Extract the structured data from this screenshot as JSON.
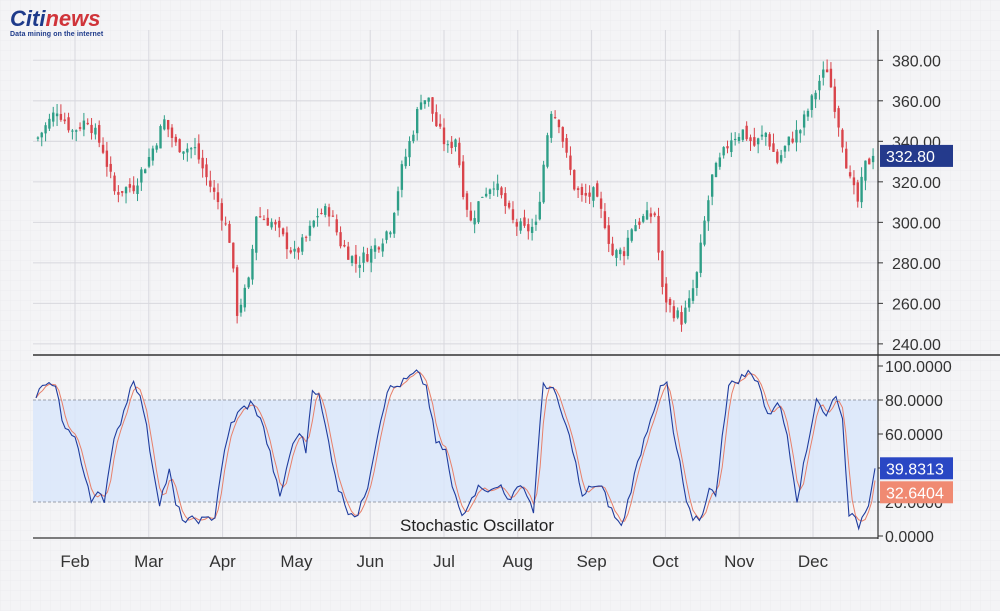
{
  "brand": {
    "logo_first": "Citi",
    "logo_second": "news",
    "tagline": "Data mining on the internet"
  },
  "colors": {
    "background": "#f4f4f6",
    "grid": "#d8d8de",
    "up": "#2e9e87",
    "down": "#d9434a",
    "k_line": "#1f3c9e",
    "d_line": "#e8806a",
    "band_fill": "#d9e6fa",
    "price_label_bg": "#243a8c",
    "k_label_bg": "#2a47c4",
    "d_label_bg": "#f08a72",
    "axis_text": "#333333"
  },
  "chart_data": [
    {
      "type": "candlestick",
      "title": "",
      "y_ticks": [
        "380.00",
        "360.00",
        "340.00",
        "320.00",
        "300.00",
        "280.00",
        "260.00",
        "240.00"
      ],
      "ylim": [
        235,
        392
      ],
      "current_price_label": "332.80",
      "current_price": 332.8,
      "x_months": [
        "Feb",
        "Mar",
        "Apr",
        "May",
        "Jun",
        "Jul",
        "Aug",
        "Sep",
        "Oct",
        "Nov",
        "Dec"
      ],
      "close_anchors": [
        [
          0,
          342
        ],
        [
          3,
          350
        ],
        [
          5,
          356
        ],
        [
          9,
          345
        ],
        [
          13,
          351
        ],
        [
          17,
          336
        ],
        [
          20,
          315
        ],
        [
          25,
          318
        ],
        [
          29,
          332
        ],
        [
          33,
          350
        ],
        [
          36,
          338
        ],
        [
          41,
          336
        ],
        [
          44,
          322
        ],
        [
          47,
          310
        ],
        [
          50,
          292
        ],
        [
          52,
          256
        ],
        [
          55,
          270
        ],
        [
          57,
          304
        ],
        [
          61,
          300
        ],
        [
          64,
          292
        ],
        [
          67,
          284
        ],
        [
          70,
          292
        ],
        [
          73,
          304
        ],
        [
          76,
          306
        ],
        [
          79,
          290
        ],
        [
          83,
          280
        ],
        [
          86,
          284
        ],
        [
          89,
          290
        ],
        [
          92,
          298
        ],
        [
          95,
          326
        ],
        [
          98,
          346
        ],
        [
          100,
          362
        ],
        [
          102,
          360
        ],
        [
          104,
          348
        ],
        [
          107,
          336
        ],
        [
          109,
          342
        ],
        [
          111,
          316
        ],
        [
          113,
          300
        ],
        [
          116,
          314
        ],
        [
          119,
          320
        ],
        [
          121,
          312
        ],
        [
          124,
          300
        ],
        [
          127,
          296
        ],
        [
          130,
          298
        ],
        [
          133,
          344
        ],
        [
          134,
          356
        ],
        [
          136,
          350
        ],
        [
          138,
          332
        ],
        [
          140,
          318
        ],
        [
          142,
          312
        ],
        [
          145,
          314
        ],
        [
          148,
          300
        ],
        [
          150,
          284
        ],
        [
          153,
          286
        ],
        [
          155,
          298
        ],
        [
          158,
          302
        ],
        [
          161,
          304
        ],
        [
          163,
          266
        ],
        [
          165,
          258
        ],
        [
          168,
          252
        ],
        [
          170,
          260
        ],
        [
          172,
          274
        ],
        [
          174,
          300
        ],
        [
          176,
          322
        ],
        [
          178,
          330
        ],
        [
          181,
          342
        ],
        [
          184,
          345
        ],
        [
          187,
          338
        ],
        [
          190,
          344
        ],
        [
          193,
          330
        ],
        [
          196,
          340
        ],
        [
          199,
          346
        ],
        [
          202,
          360
        ],
        [
          204,
          370
        ],
        [
          206,
          376
        ],
        [
          208,
          358
        ],
        [
          210,
          340
        ],
        [
          212,
          320
        ],
        [
          214,
          310
        ],
        [
          216,
          328
        ],
        [
          218,
          332.8
        ]
      ],
      "candle_count": 219
    },
    {
      "type": "line",
      "title": "Stochastic Oscillator",
      "y_ticks": [
        "100.0000",
        "80.0000",
        "60.0000",
        "40.0000",
        "20.0000",
        "0.0000"
      ],
      "ylim": [
        0,
        100
      ],
      "band": [
        20,
        80
      ],
      "series": [
        {
          "name": "",
          "current_label": "39.8313",
          "anchors": [
            [
              0,
              82
            ],
            [
              3,
              90
            ],
            [
              6,
              86
            ],
            [
              9,
              62
            ],
            [
              12,
              60
            ],
            [
              14,
              42
            ],
            [
              17,
              20
            ],
            [
              19,
              28
            ],
            [
              21,
              22
            ],
            [
              24,
              55
            ],
            [
              27,
              74
            ],
            [
              30,
              93
            ],
            [
              33,
              75
            ],
            [
              36,
              40
            ],
            [
              38,
              20
            ],
            [
              41,
              38
            ],
            [
              43,
              18
            ],
            [
              46,
              8
            ],
            [
              49,
              10
            ],
            [
              52,
              9
            ],
            [
              55,
              12
            ],
            [
              57,
              40
            ],
            [
              60,
              66
            ],
            [
              63,
              74
            ],
            [
              66,
              78
            ],
            [
              69,
              70
            ],
            [
              72,
              48
            ],
            [
              75,
              22
            ],
            [
              78,
              48
            ],
            [
              81,
              62
            ],
            [
              83,
              50
            ],
            [
              85,
              88
            ],
            [
              87,
              82
            ],
            [
              90,
              55
            ],
            [
              93,
              28
            ],
            [
              96,
              15
            ],
            [
              99,
              12
            ],
            [
              102,
              30
            ],
            [
              105,
              60
            ],
            [
              108,
              86
            ],
            [
              111,
              88
            ],
            [
              114,
              92
            ],
            [
              117,
              96
            ],
            [
              120,
              88
            ],
            [
              123,
              55
            ],
            [
              126,
              50
            ],
            [
              128,
              28
            ],
            [
              131,
              12
            ],
            [
              134,
              24
            ],
            [
              137,
              30
            ],
            [
              140,
              26
            ],
            [
              143,
              30
            ],
            [
              146,
              20
            ],
            [
              149,
              32
            ],
            [
              151,
              24
            ],
            [
              153,
              15
            ],
            [
              156,
              90
            ],
            [
              159,
              86
            ],
            [
              162,
              70
            ],
            [
              165,
              52
            ],
            [
              168,
              22
            ],
            [
              171,
              30
            ],
            [
              174,
              28
            ],
            [
              177,
              15
            ],
            [
              180,
              5
            ],
            [
              183,
              28
            ],
            [
              186,
              50
            ],
            [
              189,
              70
            ],
            [
              192,
              86
            ],
            [
              194,
              90
            ],
            [
              196,
              60
            ],
            [
              198,
              42
            ],
            [
              200,
              20
            ],
            [
              202,
              8
            ],
            [
              205,
              12
            ],
            [
              207,
              30
            ],
            [
              209,
              22
            ],
            [
              211,
              60
            ],
            [
              213,
              88
            ],
            [
              216,
              92
            ],
            [
              219,
              96
            ],
            [
              222,
              92
            ],
            [
              225,
              70
            ],
            [
              228,
              80
            ],
            [
              231,
              60
            ],
            [
              234,
              22
            ],
            [
              237,
              50
            ],
            [
              240,
              82
            ],
            [
              243,
              70
            ],
            [
              246,
              84
            ],
            [
              248,
              68
            ],
            [
              250,
              14
            ],
            [
              253,
              6
            ],
            [
              256,
              20
            ],
            [
              258,
              39.83
            ]
          ]
        },
        {
          "name": "",
          "current_label": "32.6404",
          "lag": 2,
          "end_value": 32.64
        }
      ]
    }
  ]
}
